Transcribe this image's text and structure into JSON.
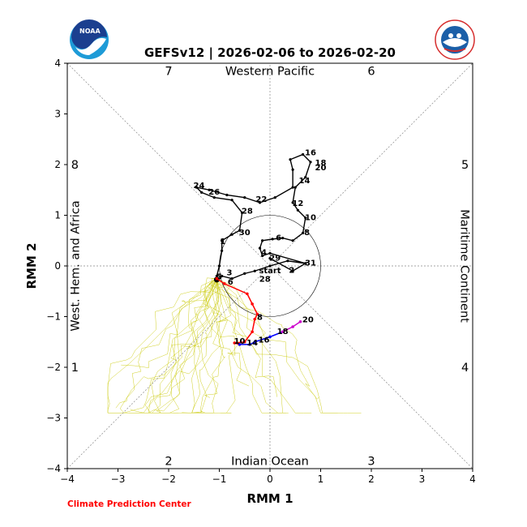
{
  "title": "GEFSv12 | 2026-02-06 to 2026-02-20",
  "credit": "Climate Prediction Center",
  "logos": {
    "noaa_text": "NOAA",
    "nws_text": "NATIONAL WEATHER SERVICE"
  },
  "chart_data": {
    "type": "line",
    "xlabel": "RMM 1",
    "ylabel": "RMM 2",
    "xlim": [
      -4,
      4
    ],
    "ylim": [
      -4,
      4
    ],
    "xticks": [
      "−4",
      "−3",
      "−2",
      "−1",
      "0",
      "1",
      "2",
      "3",
      "4"
    ],
    "yticks": [
      "−4",
      "−3",
      "−2",
      "−1",
      "0",
      "1",
      "2",
      "3",
      "4"
    ],
    "region_labels": [
      {
        "text": "Western Pacific",
        "side": "top"
      },
      {
        "text": "Indian Ocean",
        "side": "bottom"
      },
      {
        "text": "West. Hem. and Africa",
        "side": "left"
      },
      {
        "text": "Maritime Continent",
        "side": "right"
      }
    ],
    "phase_labels": [
      {
        "text": "7",
        "x": -2.0,
        "y": 3.85
      },
      {
        "text": "6",
        "x": 2.0,
        "y": 3.85
      },
      {
        "text": "8",
        "x": -3.85,
        "y": 2.0
      },
      {
        "text": "5",
        "x": 3.85,
        "y": 2.0
      },
      {
        "text": "1",
        "x": -3.85,
        "y": -2.0
      },
      {
        "text": "4",
        "x": 3.85,
        "y": -2.0
      },
      {
        "text": "2",
        "x": -2.0,
        "y": -3.85
      },
      {
        "text": "3",
        "x": 2.0,
        "y": -3.85
      }
    ],
    "unit_circle_radius": 1,
    "observed": {
      "color": "#000000",
      "points": [
        [
          0.0,
          0.15
        ],
        [
          0.45,
          -0.1
        ],
        [
          0.7,
          0.05
        ],
        [
          0.0,
          0.25
        ],
        [
          -0.15,
          0.2
        ],
        [
          -0.2,
          0.35
        ],
        [
          -0.15,
          0.5
        ],
        [
          0.05,
          0.53
        ],
        [
          0.25,
          0.55
        ],
        [
          0.45,
          0.5
        ],
        [
          0.65,
          0.65
        ],
        [
          0.7,
          0.95
        ],
        [
          0.55,
          1.1
        ],
        [
          0.45,
          1.25
        ],
        [
          0.5,
          1.55
        ],
        [
          0.7,
          1.75
        ],
        [
          0.8,
          2.05
        ],
        [
          0.65,
          2.2
        ],
        [
          0.4,
          2.1
        ],
        [
          0.45,
          1.9
        ],
        [
          0.45,
          1.55
        ],
        [
          0.1,
          1.35
        ],
        [
          -0.2,
          1.25
        ],
        [
          -0.5,
          1.35
        ],
        [
          -0.85,
          1.4
        ],
        [
          -1.2,
          1.5
        ],
        [
          -1.45,
          1.55
        ],
        [
          -1.35,
          1.45
        ],
        [
          -1.1,
          1.35
        ],
        [
          -0.75,
          1.3
        ],
        [
          -0.55,
          1.05
        ],
        [
          -0.6,
          0.7
        ],
        [
          -0.75,
          0.62
        ],
        [
          -0.95,
          0.5
        ],
        [
          -0.95,
          0.3
        ],
        [
          -1.0,
          0.0
        ],
        [
          -1.05,
          -0.2
        ],
        [
          -1.05,
          -0.25
        ],
        [
          -0.95,
          -0.2
        ],
        [
          -0.75,
          -0.25
        ],
        [
          -0.5,
          -0.15
        ],
        [
          -0.3,
          -0.1
        ],
        [
          0.0,
          0.0
        ],
        [
          0.35,
          0.1
        ],
        [
          0.7,
          0.05
        ]
      ],
      "labels": [
        {
          "text": "start",
          "x": 0.0,
          "y": -0.08
        },
        {
          "text": "2",
          "x": 0.43,
          "y": -0.07
        },
        {
          "text": "31",
          "x": 0.8,
          "y": 0.07
        },
        {
          "text": "29",
          "x": 0.1,
          "y": 0.17
        },
        {
          "text": "4",
          "x": -0.12,
          "y": 0.28
        },
        {
          "text": "6",
          "x": 0.17,
          "y": 0.57
        },
        {
          "text": "8",
          "x": 0.73,
          "y": 0.67
        },
        {
          "text": "10",
          "x": 0.8,
          "y": 0.97
        },
        {
          "text": "12",
          "x": 0.55,
          "y": 1.25
        },
        {
          "text": "14",
          "x": 0.68,
          "y": 1.7
        },
        {
          "text": "16",
          "x": 0.8,
          "y": 2.25
        },
        {
          "text": "18",
          "x": 1.0,
          "y": 2.05
        },
        {
          "text": "20",
          "x": 1.0,
          "y": 1.95
        },
        {
          "text": "22",
          "x": -0.17,
          "y": 1.33
        },
        {
          "text": "24",
          "x": -1.4,
          "y": 1.6
        },
        {
          "text": "26",
          "x": -1.1,
          "y": 1.47
        },
        {
          "text": "28",
          "x": -0.45,
          "y": 1.1
        },
        {
          "text": "30",
          "x": -0.5,
          "y": 0.67
        },
        {
          "text": "1",
          "x": -0.93,
          "y": 0.5
        },
        {
          "text": "3",
          "x": -0.8,
          "y": -0.12
        },
        {
          "text": "5",
          "x": -1.0,
          "y": -0.2
        },
        {
          "text": "6",
          "x": -0.78,
          "y": -0.3
        },
        {
          "text": "28",
          "x": -0.1,
          "y": -0.25
        }
      ]
    },
    "forecast_mean": [
      {
        "name": "week1",
        "color": "#ff0000",
        "points": [
          [
            -1.05,
            -0.25
          ],
          [
            -0.9,
            -0.35
          ],
          [
            -0.45,
            -0.55
          ],
          [
            -0.35,
            -0.75
          ],
          [
            -0.25,
            -0.95
          ],
          [
            -0.3,
            -1.05
          ],
          [
            -0.35,
            -1.3
          ],
          [
            -0.5,
            -1.5
          ],
          [
            -0.7,
            -1.52
          ],
          [
            -0.6,
            -1.55
          ]
        ]
      },
      {
        "name": "week2",
        "color": "#0000ff",
        "points": [
          [
            -0.6,
            -1.55
          ],
          [
            -0.4,
            -1.55
          ],
          [
            -0.3,
            -1.5
          ],
          [
            0.0,
            -1.4
          ],
          [
            0.25,
            -1.3
          ]
        ]
      },
      {
        "name": "week3",
        "color": "#cc00cc",
        "points": [
          [
            0.25,
            -1.3
          ],
          [
            0.45,
            -1.2
          ],
          [
            0.6,
            -1.1
          ]
        ]
      }
    ],
    "forecast_labels": [
      {
        "text": "8",
        "x": -0.2,
        "y": -1.0
      },
      {
        "text": "10",
        "x": -0.6,
        "y": -1.47
      },
      {
        "text": "14",
        "x": -0.35,
        "y": -1.5
      },
      {
        "text": "16",
        "x": -0.12,
        "y": -1.45
      },
      {
        "text": "18",
        "x": 0.25,
        "y": -1.28
      },
      {
        "text": "20",
        "x": 0.75,
        "y": -1.05
      }
    ],
    "ensemble_color": "#c8c800"
  }
}
